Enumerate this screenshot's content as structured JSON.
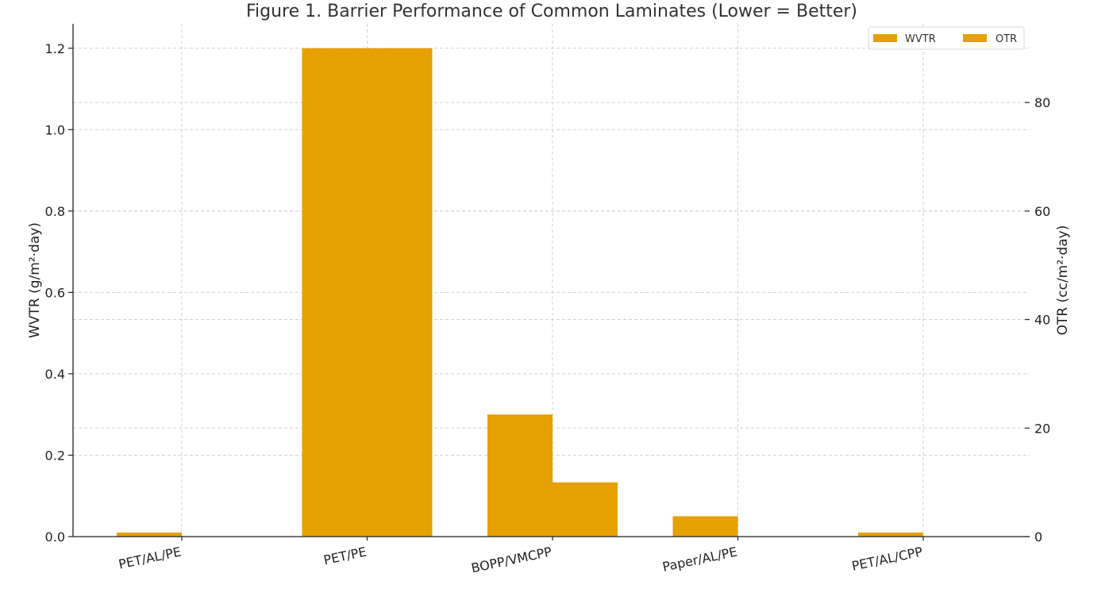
{
  "chart_data": {
    "type": "bar",
    "title": "Figure 1. Barrier Performance of Common Laminates (Lower = Better)",
    "categories": [
      "PET/AL/PE",
      "PET/PE",
      "BOPP/VMCPP",
      "Paper/AL/PE",
      "PET/AL/CPP"
    ],
    "series": [
      {
        "name": "WVTR",
        "axis": "left",
        "values": [
          0.01,
          1.2,
          0.3,
          0.05,
          0.01
        ],
        "color": "#e6a000"
      },
      {
        "name": "OTR",
        "axis": "right",
        "values": [
          0.01,
          90,
          10,
          0.01,
          0.01
        ],
        "color": "#e6a000"
      }
    ],
    "ylabel": "WVTR (g/m²·day)",
    "y2label": "OTR (cc/m²·day)",
    "ylim": [
      0,
      1.26
    ],
    "y2lim": [
      0,
      94.5
    ],
    "yticks": [
      "0.0",
      "0.2",
      "0.4",
      "0.6",
      "0.8",
      "1.0",
      "1.2"
    ],
    "y2ticks": [
      "0",
      "20",
      "40",
      "60",
      "80"
    ],
    "grid": true,
    "legend": "top-right"
  }
}
